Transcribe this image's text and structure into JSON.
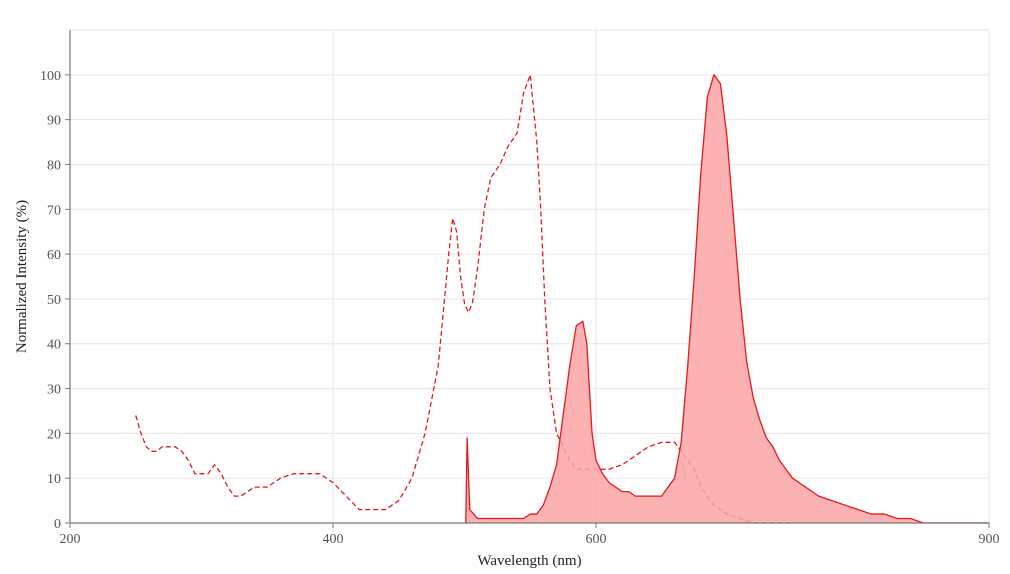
{
  "chart_data": {
    "type": "area",
    "title": "",
    "xlabel": "Wavelength (nm)",
    "ylabel": "Normalized Intensity (%)",
    "xlim": [
      200,
      900
    ],
    "ylim": [
      0,
      110
    ],
    "x_ticks": [
      200,
      400,
      600,
      900
    ],
    "y_ticks": [
      0,
      10,
      20,
      30,
      40,
      50,
      60,
      70,
      80,
      90,
      100
    ],
    "grid": true,
    "colors": {
      "line": "#e31a1c",
      "fill": "#fca5a5"
    },
    "series": [
      {
        "style": "dashed-line",
        "x": [
          250,
          254,
          258,
          262,
          266,
          270,
          275,
          280,
          285,
          290,
          295,
          300,
          305,
          310,
          315,
          320,
          325,
          330,
          340,
          350,
          360,
          370,
          380,
          390,
          400,
          410,
          420,
          430,
          440,
          450,
          460,
          470,
          480,
          488,
          491,
          494,
          497,
          500,
          503,
          506,
          510,
          515,
          520,
          527,
          533,
          540,
          545,
          550,
          555,
          558,
          561,
          565,
          570,
          575,
          580,
          585,
          590,
          595,
          600,
          610,
          620,
          630,
          640,
          650,
          660,
          665,
          670,
          675,
          680,
          690,
          700,
          710,
          720,
          730,
          740,
          750
        ],
        "values": [
          24,
          20,
          17,
          16,
          16,
          17,
          17,
          17,
          16,
          14,
          11,
          11,
          11,
          13,
          11,
          8,
          6,
          6,
          8,
          8,
          10,
          11,
          11,
          11,
          9,
          6,
          3,
          3,
          3,
          5,
          10,
          20,
          35,
          60,
          68,
          65,
          55,
          49,
          47,
          49,
          57,
          70,
          77,
          80,
          84,
          87,
          96,
          100,
          85,
          70,
          50,
          30,
          20,
          17,
          14,
          12,
          12,
          12,
          12,
          12,
          13,
          15,
          17,
          18,
          18,
          16,
          14,
          12,
          8,
          4,
          2,
          1,
          0,
          0,
          0,
          0
        ]
      },
      {
        "style": "filled-area",
        "x": [
          501,
          502,
          504,
          510,
          520,
          540,
          545,
          550,
          555,
          560,
          565,
          570,
          575,
          580,
          585,
          590,
          593,
          595,
          597,
          600,
          605,
          610,
          615,
          620,
          625,
          630,
          635,
          640,
          650,
          660,
          665,
          670,
          675,
          680,
          685,
          690,
          695,
          700,
          705,
          710,
          715,
          720,
          725,
          730,
          735,
          740,
          745,
          750,
          760,
          770,
          780,
          790,
          800,
          810,
          820,
          830,
          840,
          850,
          860,
          870,
          880,
          890,
          900
        ],
        "values": [
          0,
          19,
          3,
          1,
          1,
          1,
          1,
          2,
          2,
          4,
          8,
          13,
          24,
          35,
          44,
          45,
          40,
          30,
          20,
          14,
          11,
          9,
          8,
          7,
          7,
          6,
          6,
          6,
          6,
          10,
          18,
          35,
          55,
          78,
          95,
          100,
          98,
          86,
          68,
          50,
          36,
          28,
          23,
          19,
          17,
          14,
          12,
          10,
          8,
          6,
          5,
          4,
          3,
          2,
          2,
          1,
          1,
          0,
          0,
          0,
          0,
          0,
          0
        ]
      }
    ]
  }
}
